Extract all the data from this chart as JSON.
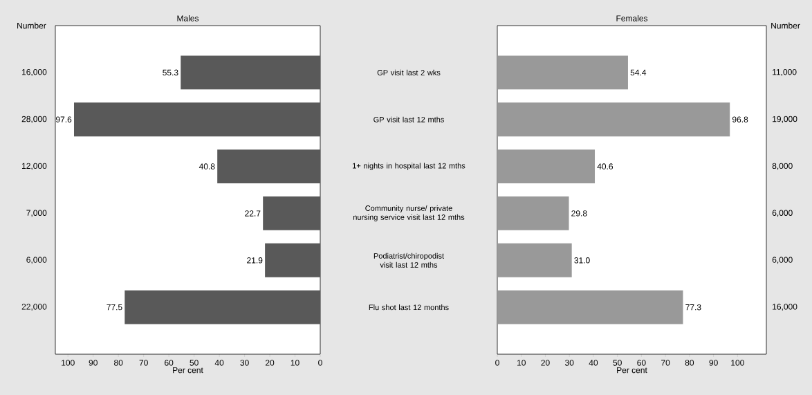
{
  "chart_data": [
    {
      "type": "bar",
      "orientation": "horizontal",
      "title": "Males",
      "xlabel": "Per cent",
      "ylabel": "Number",
      "categories": [
        "16,000",
        "28,000",
        "12,000",
        "7,000",
        "6,000",
        "22,000"
      ],
      "values": [
        55.3,
        97.6,
        40.8,
        22.7,
        21.9,
        77.5
      ],
      "value_labels": [
        "55.3",
        "97.6",
        "40.8",
        "22.7",
        "21.9",
        "77.5"
      ],
      "color": "#595959",
      "xlim": [
        105,
        0
      ],
      "xticks": [
        100,
        90,
        80,
        70,
        60,
        50,
        40,
        30,
        20,
        10,
        0
      ],
      "grid": false
    },
    {
      "type": "other",
      "annotations": [
        "GP visit last 2 wks",
        "GP visit last 12 mths",
        "1+ nights in hospital last 12 mths",
        "Community nurse/ private nursing service visit last 12 mths",
        "Podiatrist/chiropodist visit last 12 mths",
        "Flu shot last 12 months"
      ]
    },
    {
      "type": "bar",
      "orientation": "horizontal",
      "title": "Females",
      "xlabel": "Per cent",
      "ylabel": "Number",
      "categories": [
        "11,000",
        "19,000",
        "8,000",
        "6,000",
        "6,000",
        "16,000"
      ],
      "values": [
        54.4,
        96.8,
        40.6,
        29.8,
        31.0,
        77.3
      ],
      "value_labels": [
        "54.4",
        "96.8",
        "40.6",
        "29.8",
        "31.0",
        "77.3"
      ],
      "color": "#999999",
      "xlim": [
        0,
        112
      ],
      "xticks": [
        0,
        10,
        20,
        30,
        40,
        50,
        60,
        70,
        80,
        90,
        100
      ],
      "grid": false
    }
  ]
}
